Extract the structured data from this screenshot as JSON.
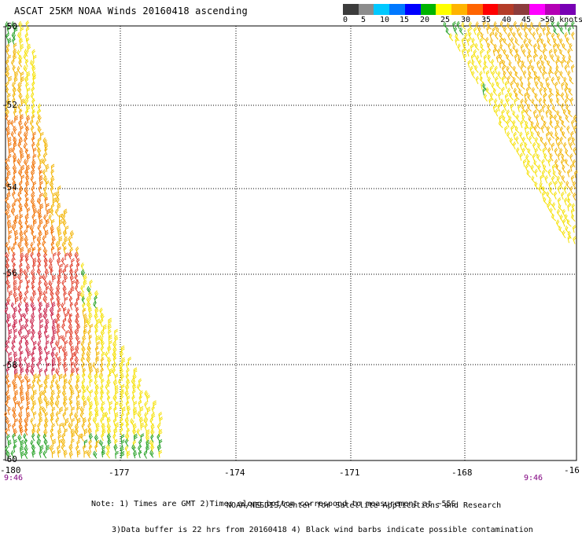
{
  "title": "ASCAT 25KM NOAA Winds 20160418 ascending",
  "legend": {
    "colors": [
      "#3c3c3c",
      "#8c8c8c",
      "#00c8ff",
      "#0078ff",
      "#0000ff",
      "#00b400",
      "#ffff00",
      "#ffb400",
      "#ff6400",
      "#ff0000",
      "#b43c28",
      "#8c3c3c",
      "#ff00ff",
      "#b400b4",
      "#7800b4"
    ],
    "labels": [
      "0",
      "5",
      "10",
      "15",
      "20",
      "25",
      "30",
      "35",
      "40",
      "45",
      ">50 knots"
    ]
  },
  "map": {
    "lat_labels": [
      "-50",
      "-52",
      "-54",
      "-56",
      "-58",
      "-60"
    ],
    "lon_labels": [
      "-180",
      "-177",
      "-174",
      "-171",
      "-168",
      "-16"
    ],
    "time_labels": [
      "9:46",
      "9:46"
    ]
  },
  "wind_colors": {
    "green": "#22a022",
    "yellow": "#f5e000",
    "gold": "#f2b300",
    "orange": "#f07000",
    "red": "#e03c28",
    "crimson": "#c81e46"
  },
  "notes": [
    "Note: 1) Times are GMT 2)Times along bottom correspond to measurement at ~55S",
    "3)Data buffer is 22 hrs from 20160418 4) Black wind barbs indicate possible contamination"
  ],
  "credit": "NOAA/NESDIS/Center for Satellite Applications and Research"
}
